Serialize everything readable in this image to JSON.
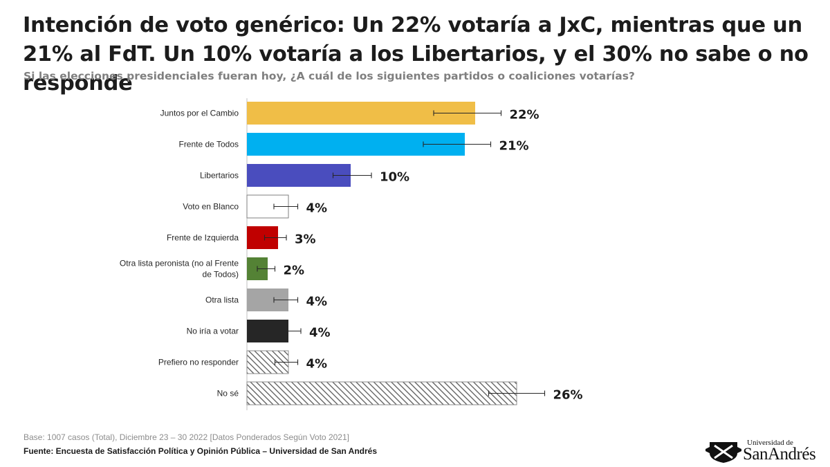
{
  "chart_data": {
    "type": "bar",
    "orientation": "horizontal",
    "title": "Intención de voto genérico: Un 22% votaría a JxC, mientras que un 21% al FdT. Un 10% votaría a los Libertarios, y el 30% no sabe o no responde",
    "subtitle": "Si las elecciones presidenciales fueran hoy, ¿A cuál de los siguientes partidos o coaliciones votarías?",
    "categories": [
      "Juntos por el Cambio",
      "Frente de Todos",
      "Libertarios",
      "Voto en Blanco",
      "Frente de Izquierda",
      "Otra lista peronista (no al Frente de Todos)",
      "Otra lista",
      "No iría a votar",
      "Prefiero no responder",
      "No sé"
    ],
    "values": [
      22,
      21,
      10,
      4,
      3,
      2,
      4,
      4,
      4,
      26
    ],
    "value_labels": [
      "22%",
      "21%",
      "10%",
      "4%",
      "3%",
      "2%",
      "4%",
      "4%",
      "4%",
      "26%"
    ],
    "error_ranges": [
      [
        18,
        24.5
      ],
      [
        17,
        23.5
      ],
      [
        8.3,
        12
      ],
      [
        2.6,
        4.9
      ],
      [
        1.7,
        3.8
      ],
      [
        1,
        2.7
      ],
      [
        2.6,
        4.9
      ],
      [
        2.7,
        5.2
      ],
      [
        2.7,
        4.9
      ],
      [
        23.3,
        28.7
      ]
    ],
    "colors": [
      "#F0BE47",
      "#00B0F0",
      "#4A4DBE",
      "#FFFFFF",
      "#C00000",
      "#548235",
      "#A5A5A5",
      "#262626",
      "hatch",
      "hatch"
    ],
    "xlim": [
      0,
      27
    ],
    "xlabel": "",
    "ylabel": "",
    "legend": "none",
    "grid": false
  },
  "footer": {
    "base": "Base: 1007 casos (Total), Diciembre 23 – 30 2022 [Datos Ponderados Según Voto 2021]",
    "source": "Fuente: Encuesta de Satisfacción Política y Opinión Pública – Universidad de San Andrés"
  },
  "logo": {
    "small": "Universidad de",
    "big": "SanAndrés"
  }
}
